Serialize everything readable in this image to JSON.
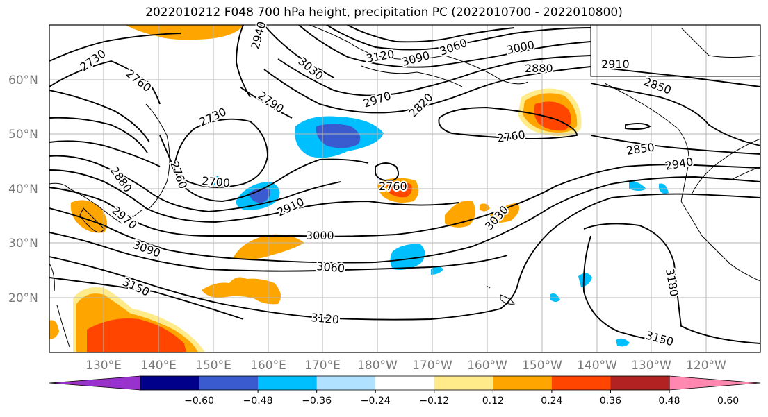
{
  "title": "2022010212 F048 700 hPa height, precipitation PC (2022010700 - 2022010800)",
  "map": {
    "lat_labels": [
      "60°N",
      "50°N",
      "40°N",
      "30°N",
      "20°N"
    ],
    "lon_labels": [
      "130°E",
      "140°E",
      "150°E",
      "160°E",
      "170°E",
      "180°W",
      "170°W",
      "160°W",
      "150°W",
      "140°W",
      "130°W",
      "120°W"
    ],
    "contour_labels": [
      "2730",
      "2760",
      "2940",
      "3030",
      "3120",
      "3090",
      "3060",
      "3000",
      "2880",
      "2910",
      "2850",
      "2790",
      "2970",
      "2820",
      "2730",
      "2760",
      "2850",
      "2940",
      "2700",
      "2760",
      "2880",
      "2910",
      "3030",
      "2760",
      "3000",
      "3090",
      "3060",
      "3150",
      "3120",
      "3180",
      "3150",
      "2970"
    ]
  },
  "colorbar": {
    "colors": [
      "#9932cc",
      "#00008b",
      "#3a5bd0",
      "#00bfff",
      "#b0e2ff",
      "#ffffff",
      "#ffeb8a",
      "#ffa500",
      "#ff4500",
      "#b22222",
      "#ff88b0"
    ],
    "labels": [
      "−0.60",
      "−0.48",
      "−0.36",
      "−0.24",
      "−0.12",
      "0.12",
      "0.24",
      "0.36",
      "0.48",
      "0.60"
    ]
  }
}
